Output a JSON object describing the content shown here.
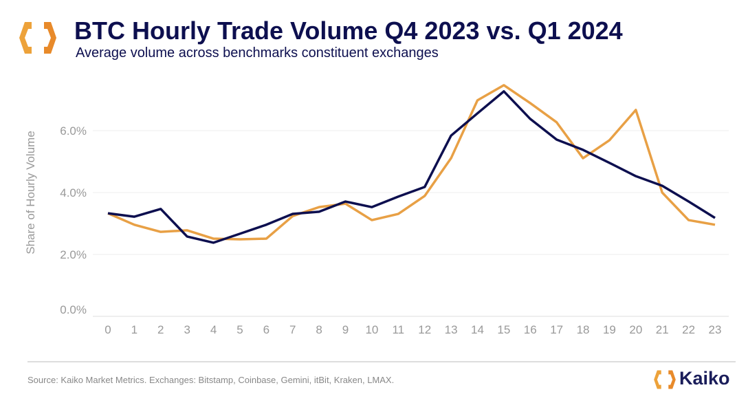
{
  "header": {
    "title": "BTC Hourly Trade Volume Q4 2023 vs. Q1 2024",
    "subtitle": "Average volume across benchmarks constituent exchanges"
  },
  "footer": {
    "source": "Source: Kaiko Market Metrics. Exchanges: Bitstamp, Coinbase, Gemini, itBit, Kraken, LMAX.",
    "brand": "Kaiko",
    "logo_icon": "kaiko-hexagon-logo"
  },
  "colors": {
    "navy": "#0d0f4f",
    "orange": "#e8a045",
    "grid": "#eeeeee",
    "axis_text": "#999999"
  },
  "chart_data": {
    "type": "line",
    "title": "BTC Hourly Trade Volume Q4 2023 vs. Q1 2024",
    "subtitle": "Average volume across benchmarks constituent exchanges",
    "xlabel": "",
    "ylabel": "Share of Hourly Volume",
    "x": [
      0,
      1,
      2,
      3,
      4,
      5,
      6,
      7,
      8,
      9,
      10,
      11,
      12,
      13,
      14,
      15,
      16,
      17,
      18,
      19,
      20,
      21,
      22,
      23
    ],
    "yticks": [
      "0.0%",
      "2.0%",
      "4.0%",
      "6.0%"
    ],
    "ytick_values": [
      0,
      2,
      4,
      6
    ],
    "ylim": [
      0,
      8
    ],
    "grid": true,
    "legend": "none",
    "series": [
      {
        "color": "#e8a045",
        "values": [
          3.33,
          2.96,
          2.73,
          2.78,
          2.51,
          2.49,
          2.51,
          3.24,
          3.53,
          3.64,
          3.11,
          3.31,
          3.89,
          5.11,
          6.98,
          7.47,
          6.89,
          6.27,
          5.11,
          5.69,
          6.67,
          4.0,
          3.11,
          2.96
        ]
      },
      {
        "color": "#0d0f4f",
        "values": [
          3.33,
          3.22,
          3.47,
          2.58,
          2.38,
          2.67,
          2.96,
          3.31,
          3.38,
          3.71,
          3.53,
          3.87,
          4.18,
          5.84,
          6.56,
          7.27,
          6.38,
          5.71,
          5.38,
          4.96,
          4.53,
          4.22,
          3.71,
          3.18
        ]
      }
    ]
  }
}
